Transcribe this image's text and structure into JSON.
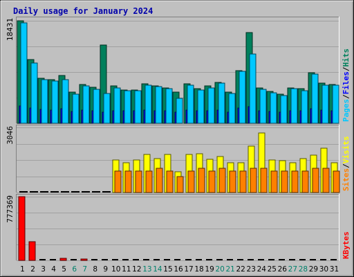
{
  "chart_data": {
    "title": "Daily usage for January 2024",
    "days": [
      "1",
      "2",
      "3",
      "4",
      "5",
      "6",
      "7",
      "8",
      "9",
      "10",
      "11",
      "12",
      "13",
      "14",
      "15",
      "16",
      "17",
      "18",
      "19",
      "20",
      "21",
      "22",
      "23",
      "24",
      "25",
      "26",
      "27",
      "28",
      "29",
      "30",
      "31"
    ],
    "weekend_days": [
      "6",
      "7",
      "13",
      "14",
      "20",
      "21",
      "27",
      "28"
    ],
    "colors": {
      "hits": "#00805c",
      "files": "#0000ff",
      "pages": "#00c8ff",
      "sites": "#ff8000",
      "visits": "#ffff00",
      "kbytes": "#ff0000",
      "title": "#0000aa",
      "weekday_label": "#000000",
      "weekend_label": "#00806a",
      "background": "#c0c0c0"
    },
    "panels": [
      {
        "type": "bar",
        "max_label": "18431",
        "legend": [
          {
            "text": "Pages",
            "color": "#00c8ff"
          },
          {
            "text": "Files",
            "color": "#0000ff"
          },
          {
            "text": "Hits",
            "color": "#00805c"
          }
        ],
        "ylim": [
          0,
          18431
        ],
        "series": [
          {
            "name": "Hits",
            "values": [
              18431,
              11400,
              8100,
              7900,
              8600,
              5600,
              7000,
              6500,
              14100,
              6700,
              6000,
              6000,
              7100,
              6700,
              6400,
              5600,
              7100,
              6200,
              6700,
              7400,
              5600,
              9500,
              16300,
              6300,
              5700,
              5200,
              6400,
              6200,
              9100,
              7200,
              7000
            ]
          },
          {
            "name": "Files",
            "values": [
              3100,
              2700,
              2500,
              2400,
              2600,
              2100,
              2400,
              2200,
              2000,
              2300,
              2200,
              2200,
              2400,
              2300,
              2200,
              2000,
              2400,
              2200,
              2300,
              2400,
              2000,
              2700,
              3000,
              2200,
              2100,
              2000,
              2300,
              2200,
              2600,
              2400,
              2300
            ]
          },
          {
            "name": "Pages",
            "values": [
              18000,
              10800,
              7900,
              7600,
              7900,
              5200,
              6700,
              6100,
              5400,
              6400,
              5800,
              5800,
              6900,
              6600,
              6200,
              4500,
              6800,
              6000,
              6300,
              7200,
              5300,
              9300,
              12400,
              6100,
              5500,
              5000,
              6200,
              5900,
              8800,
              6900,
              6800
            ]
          }
        ]
      },
      {
        "type": "bar",
        "max_label": "3046",
        "legend": [
          {
            "text": "Sites",
            "color": "#ff8000"
          },
          {
            "text": "Visits",
            "color": "#ffff00"
          }
        ],
        "ylim": [
          0,
          3046
        ],
        "series": [
          {
            "name": "Visits",
            "values": [
              0,
              0,
              0,
              0,
              0,
              0,
              0,
              0,
              0,
              1520,
              1400,
              1520,
              1790,
              1600,
              1790,
              970,
              1790,
              1800,
              1570,
              1700,
              1380,
              1400,
              2170,
              2800,
              1520,
              1500,
              1380,
              1590,
              1740,
              2060,
              1400
            ]
          },
          {
            "name": "Sites",
            "values": [
              0,
              0,
              0,
              0,
              0,
              0,
              0,
              0,
              0,
              1000,
              1000,
              1000,
              1000,
              1150,
              1000,
              730,
              1000,
              1150,
              1000,
              1150,
              1000,
              1000,
              1150,
              1150,
              1000,
              1000,
              1000,
              1000,
              1150,
              1150,
              1000
            ]
          }
        ]
      },
      {
        "type": "bar",
        "max_label": "777369",
        "legend": [
          {
            "text": "KBytes",
            "color": "#ff0000"
          }
        ],
        "ylim": [
          0,
          777369
        ],
        "series": [
          {
            "name": "KBytes",
            "values": [
              777369,
              225000,
              0,
              0,
              22000,
              0,
              20000,
              0,
              0,
              0,
              0,
              0,
              0,
              0,
              0,
              0,
              0,
              0,
              0,
              0,
              0,
              0,
              0,
              0,
              0,
              0,
              0,
              0,
              0,
              0,
              0
            ]
          }
        ]
      }
    ]
  }
}
